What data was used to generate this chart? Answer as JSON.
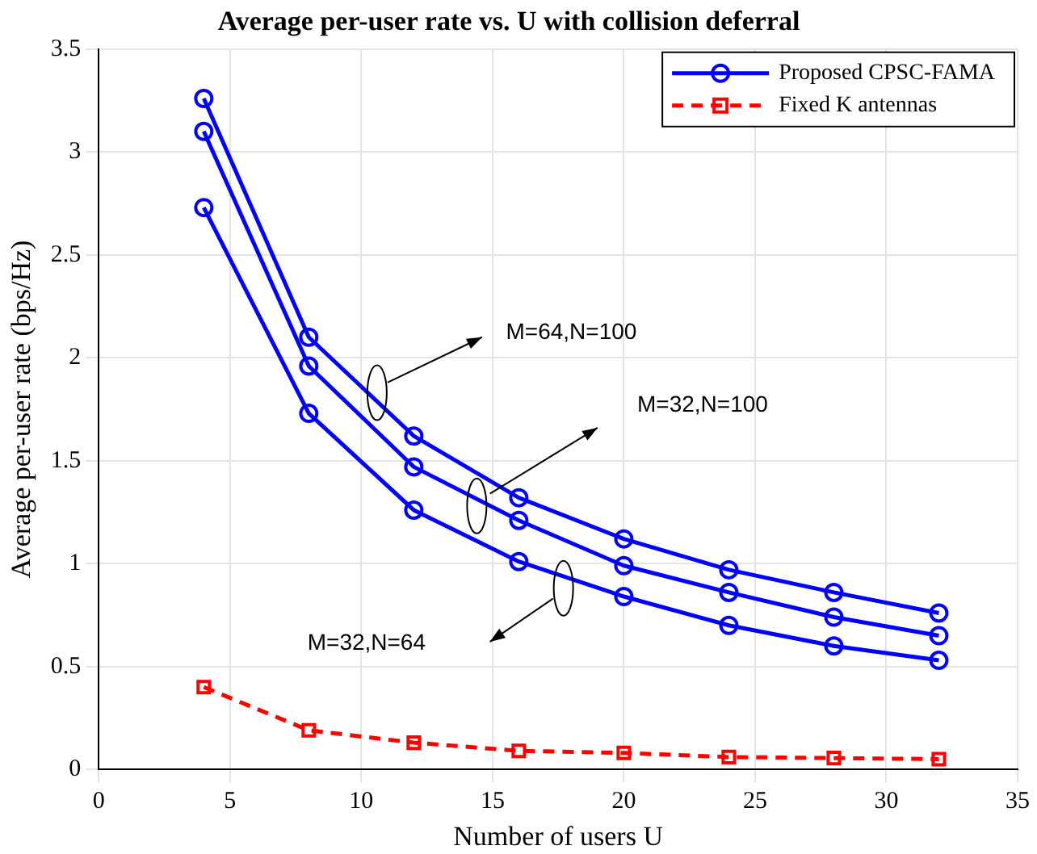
{
  "chart_data": {
    "type": "line",
    "title": "Average per-user rate vs. U with collision deferral",
    "xlabel": "Number of users U",
    "ylabel": "Average per-user rate (bps/Hz)",
    "x": [
      4,
      8,
      12,
      16,
      20,
      24,
      28,
      32
    ],
    "series": [
      {
        "name": "Proposed CPSC-FAMA",
        "color": "#0000ff",
        "marker": "circle",
        "line_style": "solid",
        "values": [
          3.26,
          2.1,
          1.62,
          1.32,
          1.12,
          0.97,
          0.86,
          0.76
        ]
      },
      {
        "color": "#0000ff",
        "marker": "circle",
        "line_style": "solid",
        "values": [
          3.1,
          1.96,
          1.47,
          1.21,
          0.99,
          0.86,
          0.74,
          0.65
        ]
      },
      {
        "color": "#0000ff",
        "marker": "circle",
        "line_style": "solid",
        "values": [
          2.73,
          1.73,
          1.26,
          1.01,
          0.84,
          0.7,
          0.6,
          0.53
        ]
      },
      {
        "name": "Fixed K antennas",
        "color": "#ff0000",
        "marker": "square",
        "line_style": "dashed",
        "values": [
          0.4,
          0.19,
          0.13,
          0.09,
          0.08,
          0.06,
          0.055,
          0.05
        ]
      }
    ],
    "xlim": [
      0,
      35
    ],
    "xticks": [
      0,
      5,
      10,
      15,
      20,
      25,
      30,
      35
    ],
    "ylim": [
      0,
      3.5
    ],
    "yticks": [
      0,
      0.5,
      1,
      1.5,
      2,
      2.5,
      3,
      3.5
    ],
    "annotations": [
      "M=64,N=100",
      "M=32,N=100",
      "M=32,N=64"
    ],
    "grid": true,
    "legend": "top right"
  }
}
